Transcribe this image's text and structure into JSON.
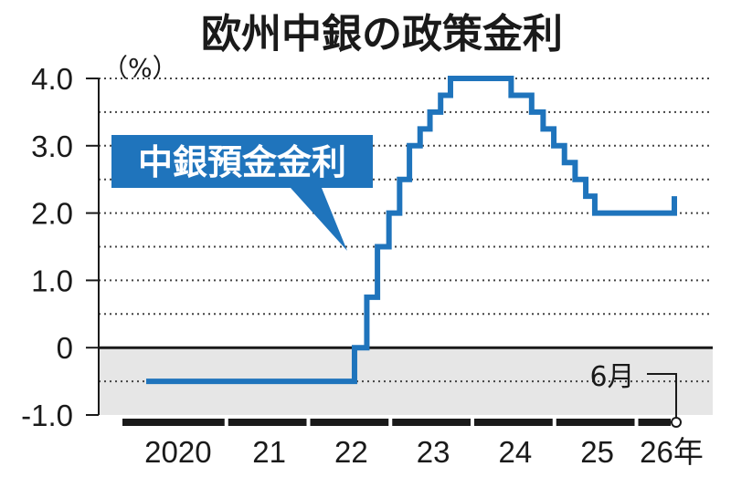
{
  "chart_data": {
    "type": "line",
    "title": "欧州中銀の政策金利",
    "unit_label": "（%）",
    "callout_label": "中銀預金金利",
    "annotation": "6月",
    "ylim": [
      -1.0,
      4.0
    ],
    "y_ticks": [
      {
        "value": 4.0,
        "label": "4.0"
      },
      {
        "value": 3.0,
        "label": "3.0"
      },
      {
        "value": 2.0,
        "label": "2.0"
      },
      {
        "value": 1.0,
        "label": "1.0"
      },
      {
        "value": 0,
        "label": "0"
      },
      {
        "value": -1.0,
        "label": "-1.0"
      }
    ],
    "x_ticks": [
      {
        "value": 2020,
        "label": "2020"
      },
      {
        "value": 2021,
        "label": "21"
      },
      {
        "value": 2022,
        "label": "22"
      },
      {
        "value": 2023,
        "label": "23"
      },
      {
        "value": 2024,
        "label": "24"
      },
      {
        "value": 2025,
        "label": "25"
      },
      {
        "value": 2026,
        "label": "26年"
      }
    ],
    "grid": true,
    "negative_region_shaded": true,
    "series": [
      {
        "color": "#1f74bc",
        "step": true,
        "points": [
          {
            "x": 2020.0,
            "y": -0.5
          },
          {
            "x": 2022.54,
            "y": 0.0
          },
          {
            "x": 2022.69,
            "y": 0.75
          },
          {
            "x": 2022.82,
            "y": 1.5
          },
          {
            "x": 2022.96,
            "y": 2.0
          },
          {
            "x": 2023.09,
            "y": 2.5
          },
          {
            "x": 2023.21,
            "y": 3.0
          },
          {
            "x": 2023.34,
            "y": 3.25
          },
          {
            "x": 2023.46,
            "y": 3.5
          },
          {
            "x": 2023.59,
            "y": 3.75
          },
          {
            "x": 2023.71,
            "y": 4.0
          },
          {
            "x": 2024.45,
            "y": 3.75
          },
          {
            "x": 2024.7,
            "y": 3.5
          },
          {
            "x": 2024.84,
            "y": 3.25
          },
          {
            "x": 2024.97,
            "y": 3.0
          },
          {
            "x": 2025.1,
            "y": 2.75
          },
          {
            "x": 2025.23,
            "y": 2.5
          },
          {
            "x": 2025.36,
            "y": 2.25
          },
          {
            "x": 2025.47,
            "y": 2.0
          },
          {
            "x": 2026.44,
            "y": 2.25
          }
        ]
      }
    ],
    "colors": {
      "line": "#1f74bc",
      "callout_bg": "#1f74bc",
      "shade": "#e6e6e6",
      "axis": "#1a1a1a",
      "grid": "#444444"
    }
  }
}
